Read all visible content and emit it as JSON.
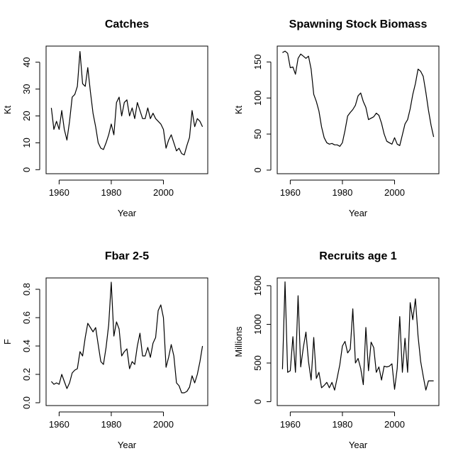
{
  "chart_data": [
    {
      "type": "line",
      "title": "Catches",
      "xlabel": "Year",
      "ylabel": "Kt",
      "xlim": [
        1955,
        2017
      ],
      "ylim": [
        -1.5,
        46
      ],
      "xticks": [
        1960,
        1980,
        2000
      ],
      "yticks": [
        0,
        10,
        20,
        30,
        40
      ],
      "grid": false,
      "series": [
        {
          "x": [
            1957,
            1958,
            1959,
            1960,
            1961,
            1962,
            1963,
            1964,
            1965,
            1966,
            1967,
            1968,
            1969,
            1970,
            1971,
            1972,
            1973,
            1974,
            1975,
            1976,
            1977,
            1978,
            1979,
            1980,
            1981,
            1982,
            1983,
            1984,
            1985,
            1986,
            1987,
            1988,
            1989,
            1990,
            1991,
            1992,
            1993,
            1994,
            1995,
            1996,
            1997,
            1998,
            1999,
            2000,
            2001,
            2002,
            2003,
            2004,
            2005,
            2006,
            2007,
            2008,
            2009,
            2010,
            2011,
            2012,
            2013,
            2014,
            2015
          ],
          "y": [
            23,
            15,
            18,
            15,
            22,
            15,
            11,
            18,
            27,
            28,
            31,
            44,
            32,
            31,
            38,
            29,
            21,
            16,
            10,
            8,
            7.5,
            10,
            13,
            17,
            13,
            25,
            27,
            20,
            25,
            26,
            20,
            23,
            19,
            25,
            22,
            19,
            19,
            23,
            19,
            21,
            19,
            18,
            17,
            15,
            8,
            11,
            13,
            10,
            7,
            8,
            6,
            5.5,
            9,
            12,
            22,
            16,
            19,
            18,
            16
          ]
        }
      ]
    },
    {
      "type": "line",
      "title": "Spawning Stock Biomass",
      "xlabel": "Year",
      "ylabel": "Kt",
      "xlim": [
        1955,
        2017
      ],
      "ylim": [
        -5,
        172
      ],
      "xticks": [
        1960,
        1980,
        2000
      ],
      "yticks": [
        0,
        50,
        100,
        150
      ],
      "grid": false,
      "series": [
        {
          "x": [
            1957,
            1958,
            1959,
            1960,
            1961,
            1962,
            1963,
            1964,
            1965,
            1966,
            1967,
            1968,
            1969,
            1970,
            1971,
            1972,
            1973,
            1974,
            1975,
            1976,
            1977,
            1978,
            1979,
            1980,
            1981,
            1982,
            1983,
            1984,
            1985,
            1986,
            1987,
            1988,
            1989,
            1990,
            1991,
            1992,
            1993,
            1994,
            1995,
            1996,
            1997,
            1998,
            1999,
            2000,
            2001,
            2002,
            2003,
            2004,
            2005,
            2006,
            2007,
            2008,
            2009,
            2010,
            2011,
            2012,
            2013,
            2014,
            2015
          ],
          "y": [
            163,
            165,
            162,
            142,
            143,
            133,
            155,
            161,
            158,
            155,
            158,
            140,
            105,
            95,
            82,
            60,
            45,
            38,
            36,
            37,
            35,
            35,
            33,
            38,
            55,
            75,
            80,
            84,
            90,
            103,
            107,
            95,
            87,
            70,
            72,
            74,
            79,
            76,
            65,
            50,
            40,
            38,
            36,
            45,
            36,
            34,
            49,
            64,
            70,
            85,
            105,
            120,
            140,
            137,
            130,
            108,
            83,
            62,
            46
          ]
        }
      ]
    },
    {
      "type": "line",
      "title": "Fbar 2-5",
      "xlabel": "Year",
      "ylabel": "F",
      "xlim": [
        1955,
        2017
      ],
      "ylim": [
        -0.02,
        0.88
      ],
      "xticks": [
        1960,
        1980,
        2000
      ],
      "yticks": [
        0.0,
        0.2,
        0.4,
        0.6,
        0.8
      ],
      "grid": false,
      "series": [
        {
          "x": [
            1957,
            1958,
            1959,
            1960,
            1961,
            1962,
            1963,
            1964,
            1965,
            1966,
            1967,
            1968,
            1969,
            1970,
            1971,
            1972,
            1973,
            1974,
            1975,
            1976,
            1977,
            1978,
            1979,
            1980,
            1981,
            1982,
            1983,
            1984,
            1985,
            1986,
            1987,
            1988,
            1989,
            1990,
            1991,
            1992,
            1993,
            1994,
            1995,
            1996,
            1997,
            1998,
            1999,
            2000,
            2001,
            2002,
            2003,
            2004,
            2005,
            2006,
            2007,
            2008,
            2009,
            2010,
            2011,
            2012,
            2013,
            2014,
            2015
          ],
          "y": [
            0.15,
            0.13,
            0.14,
            0.13,
            0.2,
            0.15,
            0.1,
            0.14,
            0.21,
            0.23,
            0.24,
            0.36,
            0.33,
            0.46,
            0.56,
            0.53,
            0.5,
            0.53,
            0.41,
            0.29,
            0.27,
            0.39,
            0.55,
            0.85,
            0.47,
            0.57,
            0.52,
            0.33,
            0.36,
            0.38,
            0.24,
            0.29,
            0.27,
            0.4,
            0.49,
            0.33,
            0.33,
            0.39,
            0.32,
            0.42,
            0.46,
            0.65,
            0.69,
            0.6,
            0.25,
            0.32,
            0.41,
            0.33,
            0.14,
            0.12,
            0.07,
            0.07,
            0.08,
            0.11,
            0.19,
            0.14,
            0.2,
            0.29,
            0.4
          ]
        }
      ]
    },
    {
      "type": "line",
      "title": "Recruits age 1",
      "xlabel": "Year",
      "ylabel": "Millions",
      "xlim": [
        1955,
        2017
      ],
      "ylim": [
        -50,
        1600
      ],
      "xticks": [
        1960,
        1980,
        2000
      ],
      "yticks": [
        0,
        500,
        1000,
        1500
      ],
      "grid": false,
      "series": [
        {
          "x": [
            1957,
            1958,
            1959,
            1960,
            1961,
            1962,
            1963,
            1964,
            1965,
            1966,
            1967,
            1968,
            1969,
            1970,
            1971,
            1972,
            1973,
            1974,
            1975,
            1976,
            1977,
            1978,
            1979,
            1980,
            1981,
            1982,
            1983,
            1984,
            1985,
            1986,
            1987,
            1988,
            1989,
            1990,
            1991,
            1992,
            1993,
            1994,
            1995,
            1996,
            1997,
            1998,
            1999,
            2000,
            2001,
            2002,
            2003,
            2004,
            2005,
            2006,
            2007,
            2008,
            2009,
            2010,
            2011,
            2012,
            2013,
            2014,
            2015
          ],
          "y": [
            420,
            1550,
            380,
            400,
            840,
            380,
            1370,
            450,
            700,
            900,
            520,
            280,
            830,
            300,
            380,
            180,
            210,
            250,
            180,
            250,
            150,
            310,
            480,
            720,
            780,
            630,
            680,
            1200,
            500,
            560,
            430,
            220,
            960,
            400,
            770,
            700,
            380,
            450,
            280,
            460,
            450,
            460,
            490,
            160,
            430,
            1100,
            380,
            820,
            380,
            1280,
            1060,
            1330,
            850,
            520,
            330,
            150,
            270,
            270,
            270
          ]
        }
      ]
    }
  ]
}
